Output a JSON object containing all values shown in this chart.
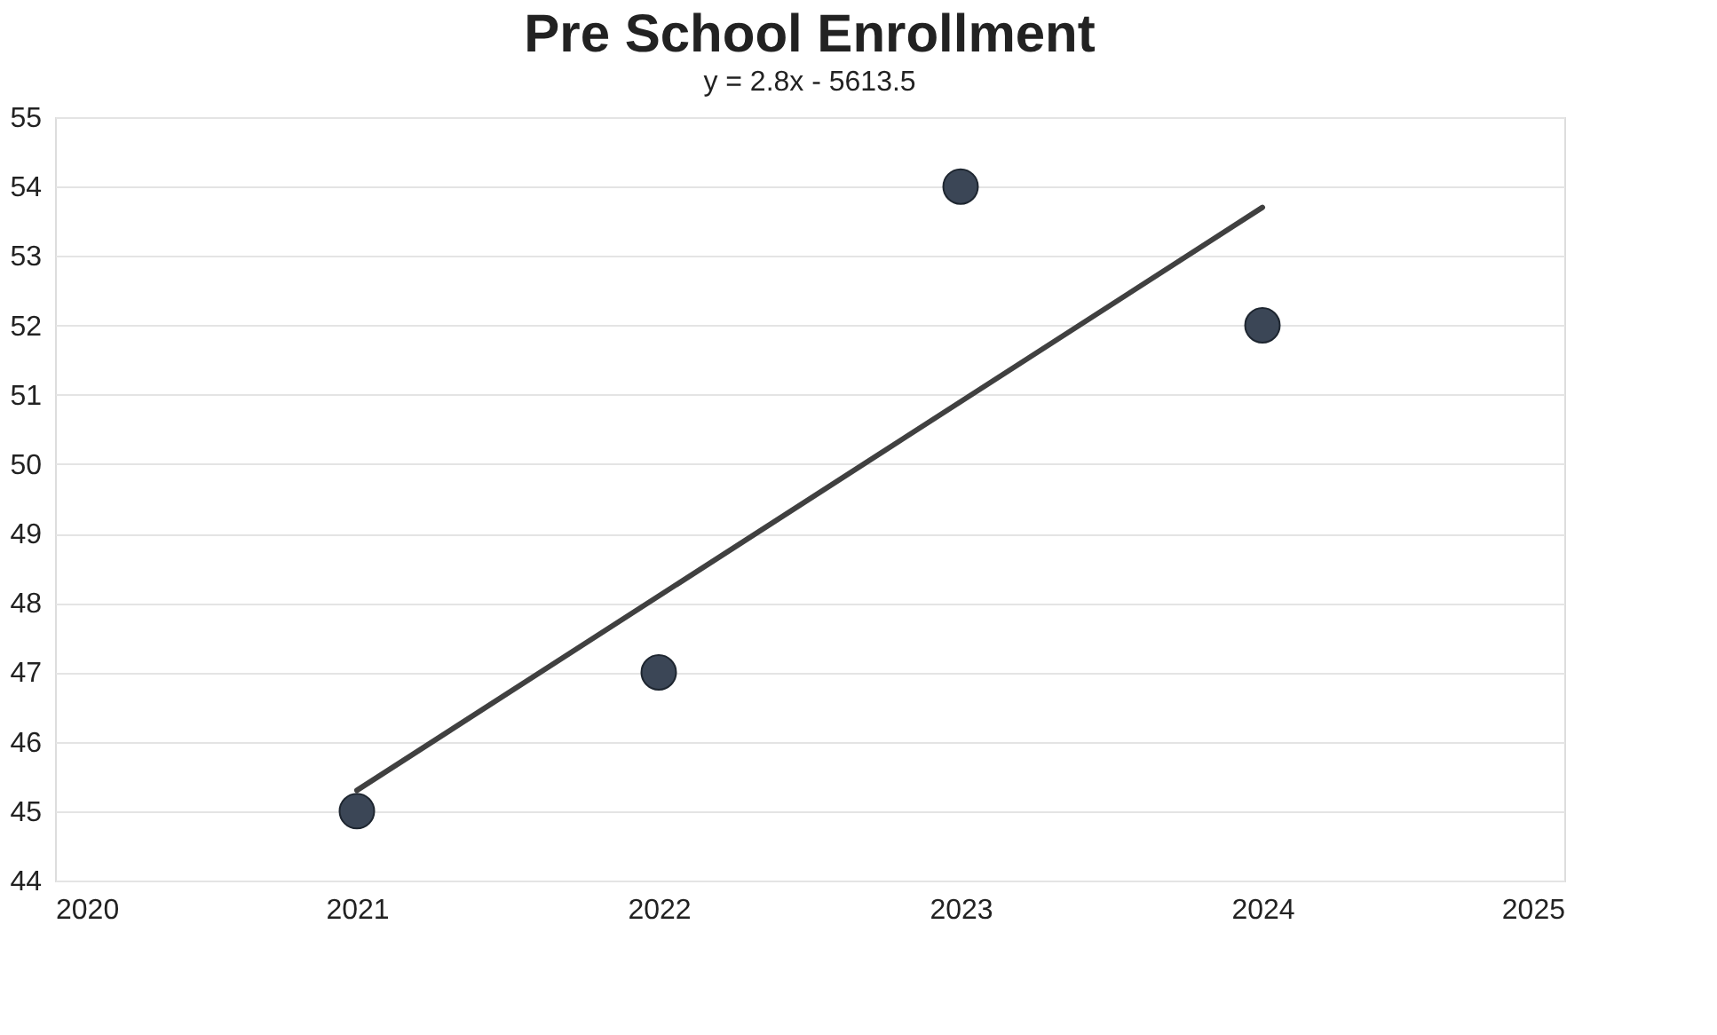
{
  "chart_data": {
    "type": "scatter",
    "title": "Pre School Enrollment",
    "subtitle": "y = 2.8x - 5613.5",
    "series": [
      {
        "color": "#3b4656",
        "x": [
          2021,
          2022,
          2023,
          2024
        ],
        "values": [
          45,
          47,
          54,
          52
        ],
        "marker": "circle"
      },
      {
        "type": "line",
        "color": "#404040",
        "x": [
          2021,
          2024
        ],
        "values": [
          45.3,
          53.7
        ],
        "line_style": "solid",
        "marker": "none"
      }
    ],
    "xlim": [
      2020,
      2025
    ],
    "xticks": [
      2020,
      2021,
      2022,
      2023,
      2024,
      2025
    ],
    "ylim": [
      44,
      55
    ],
    "yticks": [
      44,
      45,
      46,
      47,
      48,
      49,
      50,
      51,
      52,
      53,
      54,
      55
    ],
    "grid": "y"
  }
}
